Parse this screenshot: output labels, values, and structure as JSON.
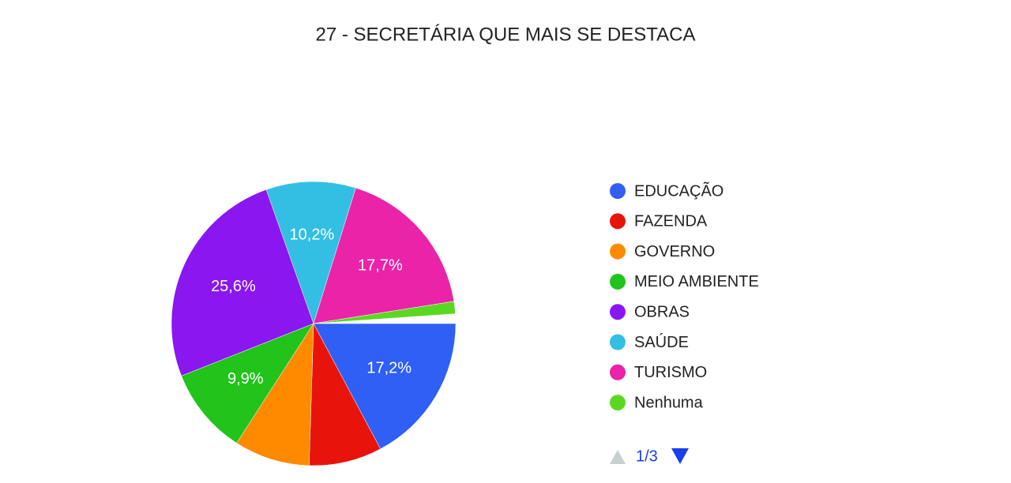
{
  "chart_data": {
    "type": "pie",
    "title": "27 - SECRETÁRIA QUE MAIS SE DESTACA",
    "categories": [
      "EDUCAÇÃO",
      "FAZENDA",
      "GOVERNO",
      "MEIO AMBIENTE",
      "OBRAS",
      "SAÚDE",
      "TURISMO",
      "Nenhuma"
    ],
    "values": [
      17.2,
      8.3,
      8.6,
      9.9,
      25.6,
      10.2,
      17.7,
      1.4
    ],
    "value_labels": [
      "17,2%",
      null,
      null,
      "9,9%",
      "25,6%",
      "10,2%",
      "17,7%",
      null
    ],
    "colors": [
      "#2f5ff5",
      "#e8140c",
      "#ff8a00",
      "#22c31a",
      "#8a16f0",
      "#32bfe3",
      "#ea23a8",
      "#5ad821"
    ],
    "legend_page": "1/3"
  }
}
